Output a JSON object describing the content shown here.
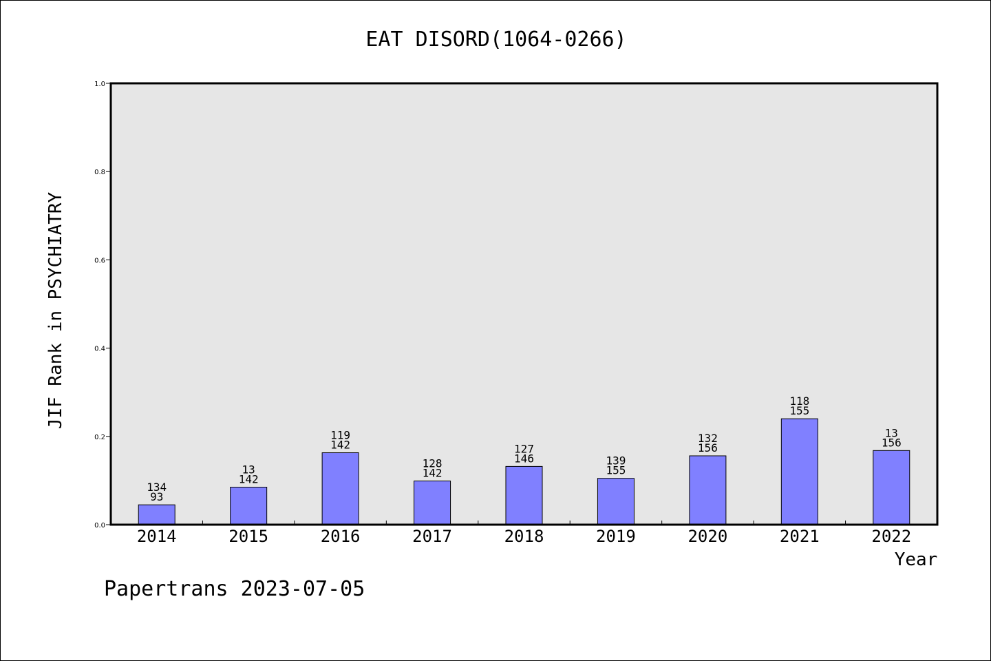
{
  "chart_data": {
    "type": "bar",
    "title": "EAT DISORD(1064-0266)",
    "xlabel": "Year",
    "ylabel": "JIF Rank in PSYCHIATRY",
    "ylim": [
      0,
      1.0
    ],
    "yticks": [
      "0.0",
      "0.2",
      "0.4",
      "0.6",
      "0.8",
      "1.0"
    ],
    "grid": false,
    "colors": {
      "bar": "#8080ff",
      "plot_bg": "#e6e6e6"
    },
    "categories": [
      "2014",
      "2015",
      "2016",
      "2017",
      "2018",
      "2019",
      "2020",
      "2021",
      "2022"
    ],
    "values": [
      0.045,
      0.085,
      0.163,
      0.099,
      0.132,
      0.105,
      0.156,
      0.24,
      0.168
    ],
    "labels_top": [
      "134",
      "13",
      "119",
      "128",
      "127",
      "139",
      "132",
      "118",
      "13"
    ],
    "labels_bottom": [
      "93",
      "142",
      "142",
      "142",
      "146",
      "155",
      "156",
      "155",
      "156"
    ]
  },
  "footer": {
    "text": "Papertrans 2023-07-05"
  }
}
